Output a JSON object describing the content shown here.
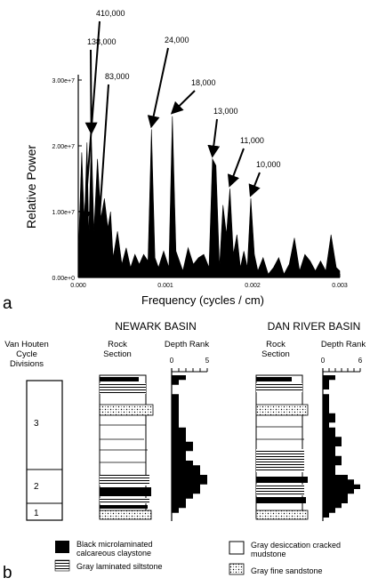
{
  "panel_a": {
    "panel_label": "a",
    "chart_data": {
      "type": "area",
      "title": "",
      "xlabel": "Frequency (cycles / cm)",
      "ylabel": "Relative Power",
      "xlim": [
        0,
        0.003
      ],
      "ylim": [
        0,
        30000000
      ],
      "x_ticks": [
        {
          "v": 0,
          "label": "0.000"
        },
        {
          "v": 0.001,
          "label": "0.001"
        },
        {
          "v": 0.002,
          "label": "0.002"
        },
        {
          "v": 0.003,
          "label": "0.003"
        }
      ],
      "y_ticks": [
        {
          "v": 0,
          "label": "0.00e+0"
        },
        {
          "v": 10000000,
          "label": "1.00e+7"
        },
        {
          "v": 20000000,
          "label": "2.00e+7"
        },
        {
          "v": 30000000,
          "label": "3.00e+7"
        }
      ],
      "grid": false,
      "series": [
        {
          "x": [
            0,
            4e-05,
            7e-05,
            0.0001,
            0.00012,
            0.00015,
            0.00018,
            0.00022,
            0.00026,
            0.0003,
            0.00034,
            0.00037,
            0.0004,
            0.00045,
            0.0005,
            0.00055,
            0.0006,
            0.00065,
            0.0007,
            0.00075,
            0.0008,
            0.00084,
            0.00088,
            0.00092,
            0.00098,
            0.00104,
            0.00108,
            0.00112,
            0.00116,
            0.0012,
            0.00126,
            0.00132,
            0.00138,
            0.00144,
            0.0015,
            0.00154,
            0.00158,
            0.00162,
            0.00166,
            0.0017,
            0.00174,
            0.00178,
            0.00182,
            0.00186,
            0.0019,
            0.00194,
            0.00198,
            0.00202,
            0.00206,
            0.00212,
            0.00218,
            0.00224,
            0.0023,
            0.00236,
            0.00242,
            0.00248,
            0.00254,
            0.0026,
            0.00266,
            0.00272,
            0.00278,
            0.00284,
            0.0029,
            0.00296,
            0.003
          ],
          "y": [
            3000000,
            19000000,
            8000000,
            20500000,
            6000000,
            21500000,
            7000000,
            18000000,
            9000000,
            12000000,
            7500000,
            10000000,
            3000000,
            7000000,
            2000000,
            4500000,
            1500000,
            3500000,
            2000000,
            3500000,
            2500000,
            22500000,
            3000000,
            1500000,
            4000000,
            1500000,
            24500000,
            4000000,
            2500000,
            1000000,
            4500000,
            2000000,
            3000000,
            3500000,
            1500000,
            18000000,
            17000000,
            1500000,
            11000000,
            6500000,
            13500000,
            3500000,
            6500000,
            1500000,
            4000000,
            1500000,
            12000000,
            3500000,
            1000000,
            3000000,
            500000,
            1500000,
            3000000,
            500000,
            2000000,
            6000000,
            1000000,
            3500000,
            2500000,
            1000000,
            2500000,
            1000000,
            6500000,
            1500000,
            1000000
          ]
        }
      ],
      "annotations": [
        {
          "text": "410,000",
          "x": 7e-05
        },
        {
          "text": "138,000",
          "x": 0.00015
        },
        {
          "text": "83,000",
          "x": 0.0002
        },
        {
          "text": "24,000",
          "x": 0.00084
        },
        {
          "text": "18,000",
          "x": 0.00108
        },
        {
          "text": "13,000",
          "x": 0.00154
        },
        {
          "text": "11,000",
          "x": 0.00174
        },
        {
          "text": "10,000",
          "x": 0.00198
        }
      ]
    }
  },
  "panel_b": {
    "panel_label": "b",
    "cycle_header": [
      "Van Houten",
      "Cycle",
      "Divisions"
    ],
    "cycle_labels": [
      "3",
      "2",
      "1"
    ],
    "newark": {
      "title": "NEWARK BASIN",
      "rock_header": [
        "Rock",
        "Section"
      ],
      "depth_header": "Depth Rank",
      "depth_ticks": [
        "0",
        "5"
      ],
      "depth_ranks": [
        2,
        1,
        0,
        0,
        1,
        1,
        1,
        1,
        1,
        1,
        1,
        2,
        2,
        2,
        3,
        3,
        2,
        2,
        3,
        4,
        4,
        5,
        5,
        4,
        4,
        3,
        2,
        2,
        1,
        0
      ]
    },
    "dan_river": {
      "title": "DAN RIVER BASIN",
      "rock_header": [
        "Rock",
        "Section"
      ],
      "depth_header": "Depth Rank",
      "depth_ticks": [
        "0",
        "6"
      ],
      "depth_ranks": [
        2,
        1,
        1,
        0,
        1,
        1,
        1,
        1,
        2,
        2,
        1,
        2,
        2,
        3,
        3,
        2,
        2,
        3,
        3,
        2,
        2,
        4,
        5,
        6,
        5,
        4,
        4,
        3,
        2,
        1
      ]
    },
    "legend": [
      {
        "key": "black",
        "lines": [
          "Black microlaminated",
          "calcareous claystone"
        ]
      },
      {
        "key": "white",
        "lines": [
          "Gray desiccation cracked",
          "mudstone"
        ]
      },
      {
        "key": "laminated",
        "lines": [
          "Gray laminated siltstone"
        ]
      },
      {
        "key": "sand",
        "lines": [
          "Gray fine sandstone"
        ]
      }
    ]
  }
}
